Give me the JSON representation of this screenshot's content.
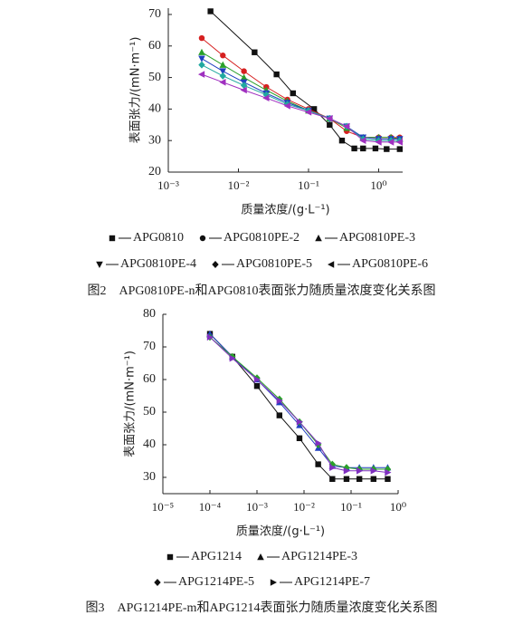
{
  "chart_data": [
    {
      "type": "line",
      "xscale": "log",
      "xlabel": "质量浓度/(g·L⁻¹)",
      "ylabel": "表面张力/(mN·m⁻¹)",
      "caption": "图2　APG0810PE-n和APG0810表面张力随质量浓度变化关系图",
      "xlim": [
        0.001,
        2.2
      ],
      "ylim": [
        20,
        72
      ],
      "xticks": [
        {
          "value": 0.001,
          "label": "10⁻³"
        },
        {
          "value": 0.01,
          "label": "10⁻²"
        },
        {
          "value": 0.1,
          "label": "10⁻¹"
        },
        {
          "value": 1,
          "label": "10⁰"
        }
      ],
      "yticks": [
        20,
        30,
        40,
        50,
        60,
        70
      ],
      "series": [
        {
          "name": "APG0810",
          "marker": "square",
          "color": "#111111",
          "x": [
            0.004,
            0.017,
            0.035,
            0.06,
            0.12,
            0.2,
            0.3,
            0.45,
            0.6,
            0.9,
            1.3,
            2
          ],
          "values": [
            71,
            58,
            51,
            45,
            40,
            35,
            30,
            27.5,
            27.5,
            27.5,
            27.3,
            27.3
          ]
        },
        {
          "name": "APG0810PE-2",
          "marker": "circle",
          "color": "#d62020",
          "x": [
            0.003,
            0.006,
            0.012,
            0.025,
            0.05,
            0.1,
            0.2,
            0.35,
            0.6,
            1,
            1.5,
            2
          ],
          "values": [
            62.5,
            57,
            52,
            47,
            43,
            40,
            37,
            33,
            31,
            31,
            31,
            31
          ]
        },
        {
          "name": "APG0810PE-3",
          "marker": "triangle",
          "color": "#2aa02a",
          "x": [
            0.003,
            0.006,
            0.012,
            0.025,
            0.05,
            0.1,
            0.2,
            0.35,
            0.6,
            1,
            1.5,
            2
          ],
          "values": [
            58,
            54,
            50,
            46,
            42.5,
            39.5,
            37,
            34,
            31,
            31,
            31,
            30.5
          ]
        },
        {
          "name": "APG0810PE-4",
          "marker": "down",
          "color": "#2040c0",
          "x": [
            0.003,
            0.006,
            0.012,
            0.025,
            0.05,
            0.1,
            0.2,
            0.35,
            0.6,
            1,
            1.5,
            2
          ],
          "values": [
            56,
            52,
            48.5,
            45,
            42,
            39.5,
            37,
            34.5,
            31,
            30.5,
            30.5,
            30.5
          ]
        },
        {
          "name": "APG0810PE-5",
          "marker": "diamond",
          "color": "#20a8a0",
          "x": [
            0.003,
            0.006,
            0.012,
            0.025,
            0.05,
            0.1,
            0.2,
            0.35,
            0.6,
            1,
            1.5,
            2
          ],
          "values": [
            54,
            50.5,
            47.5,
            44.5,
            41.5,
            39.5,
            37,
            34.5,
            30.5,
            30,
            30,
            30
          ]
        },
        {
          "name": "APG0810PE-6",
          "marker": "left",
          "color": "#a030c0",
          "x": [
            0.003,
            0.006,
            0.012,
            0.025,
            0.05,
            0.1,
            0.2,
            0.35,
            0.6,
            1,
            1.5,
            2
          ],
          "values": [
            51,
            48.5,
            46,
            43.5,
            41,
            39,
            37,
            34.5,
            30,
            29.5,
            29.5,
            29.5
          ]
        }
      ]
    },
    {
      "type": "line",
      "xscale": "log",
      "xlabel": "质量浓度/(g·L⁻¹)",
      "ylabel": "表面张力/(mN·m⁻¹)",
      "caption": "图3　APG1214PE-m和APG1214表面张力随质量浓度变化关系图",
      "xlim": [
        1e-05,
        1
      ],
      "ylim": [
        25,
        80
      ],
      "xticks": [
        {
          "value": 1e-05,
          "label": "10⁻⁵"
        },
        {
          "value": 0.0001,
          "label": "10⁻⁴"
        },
        {
          "value": 0.001,
          "label": "10⁻³"
        },
        {
          "value": 0.01,
          "label": "10⁻²"
        },
        {
          "value": 0.1,
          "label": "10⁻¹"
        },
        {
          "value": 1,
          "label": "10⁰"
        }
      ],
      "yticks": [
        30,
        40,
        50,
        60,
        70,
        80
      ],
      "series": [
        {
          "name": "APG1214",
          "marker": "square",
          "color": "#111111",
          "x": [
            0.0001,
            0.0003,
            0.001,
            0.003,
            0.008,
            0.02,
            0.04,
            0.08,
            0.15,
            0.3,
            0.6
          ],
          "values": [
            74,
            67,
            58,
            49,
            42,
            34,
            29.5,
            29.5,
            29.5,
            29.5,
            29.5
          ]
        },
        {
          "name": "APG1214PE-3",
          "marker": "triangle",
          "color": "#2040c0",
          "x": [
            0.0001,
            0.0003,
            0.001,
            0.003,
            0.008,
            0.02,
            0.04,
            0.08,
            0.15,
            0.3,
            0.6
          ],
          "values": [
            74,
            67,
            60,
            53,
            46,
            39,
            33.5,
            33,
            33,
            33,
            33
          ]
        },
        {
          "name": "APG1214PE-5",
          "marker": "diamond",
          "color": "#2aa02a",
          "x": [
            0.0001,
            0.0003,
            0.001,
            0.003,
            0.008,
            0.02,
            0.04,
            0.08,
            0.15,
            0.3,
            0.6
          ],
          "values": [
            73,
            67,
            60.5,
            54,
            47,
            40,
            34,
            33,
            32.5,
            32.5,
            32.5
          ]
        },
        {
          "name": "APG1214PE-7",
          "marker": "right",
          "color": "#8030c0",
          "x": [
            0.0001,
            0.0003,
            0.001,
            0.003,
            0.008,
            0.02,
            0.04,
            0.08,
            0.15,
            0.3,
            0.6
          ],
          "values": [
            73,
            66.5,
            60,
            53.5,
            47,
            40.5,
            33,
            32,
            32,
            32,
            31.5
          ]
        }
      ]
    }
  ]
}
